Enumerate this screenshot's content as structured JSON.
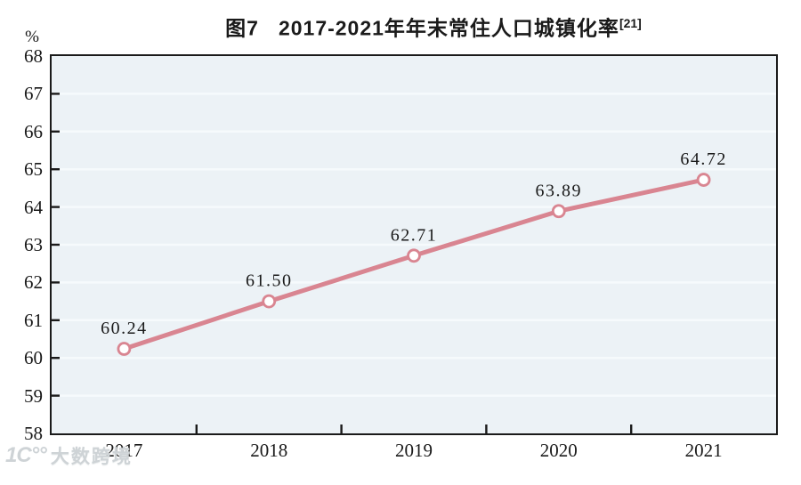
{
  "figure": {
    "title_prefix": "图7",
    "title_main": "2017-2021年年末常住人口城镇化率",
    "title_ref": "[21]",
    "unit_label": "%",
    "watermark_logo": "1C°°",
    "watermark_text": "大数跨境"
  },
  "colors": {
    "line": "#d98591",
    "marker_fill": "#ffffff",
    "plot_bg": "#ecf2f6",
    "gridline": "#f6fafc",
    "axis": "#1a1a1a",
    "text": "#1a1a1a",
    "watermark": "#ced3d6"
  },
  "chart_data": {
    "type": "line",
    "title": "图7 2017-2021年年末常住人口城镇化率[21]",
    "categories": [
      "2017",
      "2018",
      "2019",
      "2020",
      "2021"
    ],
    "series": [
      {
        "name": "年末常住人口城镇化率",
        "values": [
          60.24,
          61.5,
          62.71,
          63.89,
          64.72
        ]
      }
    ],
    "data_labels": [
      "60.24",
      "61.50",
      "62.71",
      "63.89",
      "64.72"
    ],
    "xlabel": "",
    "ylabel": "%",
    "ylim": [
      58,
      68
    ],
    "yticks": [
      58,
      59,
      60,
      61,
      62,
      63,
      64,
      65,
      66,
      67,
      68
    ],
    "grid": "horizontal",
    "legend_position": "none",
    "marker": "open-circle"
  }
}
